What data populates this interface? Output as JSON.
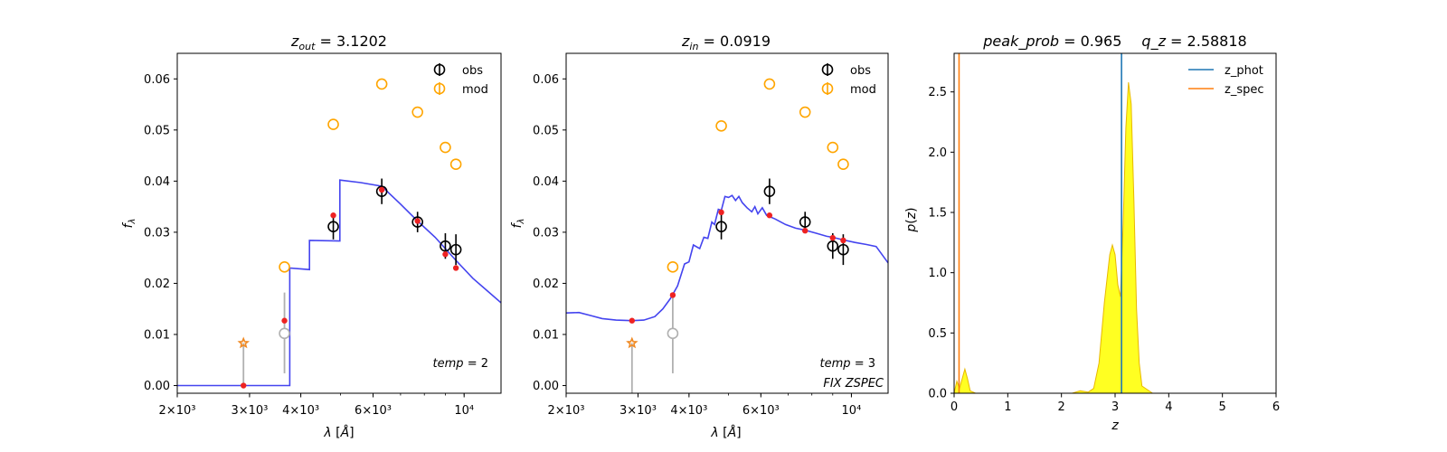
{
  "figure": {
    "panels": [
      {
        "title_text": "z_out = 3.1202",
        "title_parts": {
          "var": "z",
          "sub": "out",
          "eq": " = 3.1202"
        }
      },
      {
        "title_text": "z_in = 0.0919",
        "title_parts": {
          "var": "z",
          "sub": "in",
          "eq": " = 0.0919"
        }
      },
      {
        "title_text": "peak_prob = 0.965      q_z = 2.58818",
        "title_parts": {
          "left": "peak_prob",
          "left_eq": " = 0.965",
          "right": "q_z",
          "right_eq": " = 2.58818"
        }
      }
    ]
  },
  "chart_data": [
    {
      "type": "scatter",
      "title": "z_out = 3.1202",
      "xlabel": "λ [Å]",
      "ylabel": "f_λ",
      "xscale": "log",
      "xlim": [
        2000,
        12300
      ],
      "ylim": [
        -0.0015,
        0.065
      ],
      "xtick_labels": [
        "2×10³",
        "3×10³",
        "4×10³",
        "6×10³",
        "10⁴"
      ],
      "xtick_values": [
        2000,
        3000,
        4000,
        6000,
        10000
      ],
      "ytick_values": [
        0.0,
        0.01,
        0.02,
        0.03,
        0.04,
        0.05,
        0.06
      ],
      "ytick_labels": [
        "0.00",
        "0.01",
        "0.02",
        "0.03",
        "0.04",
        "0.05",
        "0.06"
      ],
      "legend": {
        "placement": "top-right",
        "entries": [
          "obs",
          "mod"
        ]
      },
      "annotation": "temp = 2",
      "colors": {
        "obs": "#000000",
        "mod": "#ffa500",
        "model_curve": "#3a3aee",
        "model_points": "#ee2222",
        "upper_limit": "#f08a24",
        "faint": "#b0b0b0"
      },
      "obs": [
        {
          "x": 4800,
          "y": 0.0311,
          "err": 0.0025
        },
        {
          "x": 6300,
          "y": 0.038,
          "err": 0.0025
        },
        {
          "x": 7700,
          "y": 0.032,
          "err": 0.002
        },
        {
          "x": 9000,
          "y": 0.0273,
          "err": 0.0025
        },
        {
          "x": 9550,
          "y": 0.0266,
          "err": 0.003
        }
      ],
      "obs_faint": [
        {
          "x": 3650,
          "y": 0.0102,
          "err_low": 0.0078,
          "err_high": 0.008
        }
      ],
      "upper_limits": [
        {
          "x": 2900,
          "y": 0.0083,
          "err_low": 0.0085,
          "err_high": 0.0
        }
      ],
      "mod": [
        {
          "x": 3650,
          "y": 0.0232
        },
        {
          "x": 4800,
          "y": 0.0511
        },
        {
          "x": 6300,
          "y": 0.059
        },
        {
          "x": 7700,
          "y": 0.0535
        },
        {
          "x": 9000,
          "y": 0.0466
        },
        {
          "x": 9550,
          "y": 0.0433
        }
      ],
      "model_points": [
        {
          "x": 2900,
          "y": 0.0
        },
        {
          "x": 3650,
          "y": 0.0127
        },
        {
          "x": 4800,
          "y": 0.0333
        },
        {
          "x": 6300,
          "y": 0.0383
        },
        {
          "x": 7700,
          "y": 0.0322
        },
        {
          "x": 9000,
          "y": 0.0257
        },
        {
          "x": 9550,
          "y": 0.023
        }
      ],
      "model_curve": [
        [
          2000,
          0.0
        ],
        [
          3760,
          0.0
        ],
        [
          3760,
          0.023
        ],
        [
          4200,
          0.0227
        ],
        [
          4200,
          0.0284
        ],
        [
          4980,
          0.0283
        ],
        [
          4980,
          0.0402
        ],
        [
          5600,
          0.0397
        ],
        [
          6300,
          0.039
        ],
        [
          7000,
          0.0355
        ],
        [
          7700,
          0.0322
        ],
        [
          8500,
          0.029
        ],
        [
          9000,
          0.0268
        ],
        [
          9550,
          0.0245
        ],
        [
          10500,
          0.021
        ],
        [
          11400,
          0.0185
        ],
        [
          12300,
          0.0162
        ]
      ]
    },
    {
      "type": "scatter",
      "title": "z_in = 0.0919",
      "xlabel": "λ [Å]",
      "ylabel": "f_λ",
      "xscale": "log",
      "xlim": [
        2000,
        12300
      ],
      "ylim": [
        -0.0015,
        0.065
      ],
      "xtick_labels": [
        "2×10³",
        "3×10³",
        "4×10³",
        "6×10³",
        "10⁴"
      ],
      "xtick_values": [
        2000,
        3000,
        4000,
        6000,
        10000
      ],
      "ytick_values": [
        0.0,
        0.01,
        0.02,
        0.03,
        0.04,
        0.05,
        0.06
      ],
      "ytick_labels": [
        "0.00",
        "0.01",
        "0.02",
        "0.03",
        "0.04",
        "0.05",
        "0.06"
      ],
      "legend": {
        "placement": "top-right",
        "entries": [
          "obs",
          "mod"
        ]
      },
      "annotation": "temp = 3",
      "annotation2": "FIX ZSPEC",
      "colors": {
        "obs": "#000000",
        "mod": "#ffa500",
        "model_curve": "#3a3aee",
        "model_points": "#ee2222",
        "upper_limit": "#f08a24",
        "faint": "#b0b0b0"
      },
      "obs": [
        {
          "x": 4800,
          "y": 0.0311,
          "err": 0.0025
        },
        {
          "x": 6300,
          "y": 0.038,
          "err": 0.0025
        },
        {
          "x": 7700,
          "y": 0.032,
          "err": 0.002
        },
        {
          "x": 9000,
          "y": 0.0273,
          "err": 0.0025
        },
        {
          "x": 9550,
          "y": 0.0266,
          "err": 0.003
        }
      ],
      "obs_faint": [
        {
          "x": 3650,
          "y": 0.0102,
          "err_low": 0.0078,
          "err_high": 0.008
        }
      ],
      "upper_limits": [
        {
          "x": 2900,
          "y": 0.0083,
          "err_low": 0.01,
          "err_high": 0.0
        }
      ],
      "mod": [
        {
          "x": 3650,
          "y": 0.0232
        },
        {
          "x": 4800,
          "y": 0.0508
        },
        {
          "x": 6300,
          "y": 0.059
        },
        {
          "x": 7700,
          "y": 0.0535
        },
        {
          "x": 9000,
          "y": 0.0466
        },
        {
          "x": 9550,
          "y": 0.0433
        }
      ],
      "model_points": [
        {
          "x": 2900,
          "y": 0.0127
        },
        {
          "x": 3650,
          "y": 0.0177
        },
        {
          "x": 4800,
          "y": 0.0339
        },
        {
          "x": 6300,
          "y": 0.0333
        },
        {
          "x": 7700,
          "y": 0.0303
        },
        {
          "x": 9000,
          "y": 0.0289
        },
        {
          "x": 9550,
          "y": 0.0284
        }
      ],
      "model_curve": [
        [
          2000,
          0.0142
        ],
        [
          2150,
          0.0143
        ],
        [
          2300,
          0.0137
        ],
        [
          2450,
          0.0131
        ],
        [
          2650,
          0.0128
        ],
        [
          2900,
          0.0127
        ],
        [
          3100,
          0.0128
        ],
        [
          3300,
          0.0135
        ],
        [
          3450,
          0.015
        ],
        [
          3600,
          0.017
        ],
        [
          3750,
          0.0195
        ],
        [
          3900,
          0.0238
        ],
        [
          4000,
          0.0242
        ],
        [
          4100,
          0.0275
        ],
        [
          4250,
          0.0268
        ],
        [
          4350,
          0.029
        ],
        [
          4450,
          0.0288
        ],
        [
          4550,
          0.032
        ],
        [
          4620,
          0.0315
        ],
        [
          4720,
          0.0345
        ],
        [
          4800,
          0.0343
        ],
        [
          4900,
          0.037
        ],
        [
          5000,
          0.0368
        ],
        [
          5100,
          0.0372
        ],
        [
          5200,
          0.0362
        ],
        [
          5300,
          0.037
        ],
        [
          5400,
          0.0358
        ],
        [
          5550,
          0.0348
        ],
        [
          5700,
          0.034
        ],
        [
          5800,
          0.035
        ],
        [
          5900,
          0.0336
        ],
        [
          6050,
          0.0348
        ],
        [
          6200,
          0.0333
        ],
        [
          6500,
          0.0326
        ],
        [
          6900,
          0.0315
        ],
        [
          7300,
          0.0308
        ],
        [
          7700,
          0.0304
        ],
        [
          8200,
          0.0298
        ],
        [
          8700,
          0.0292
        ],
        [
          9000,
          0.029
        ],
        [
          9550,
          0.0285
        ],
        [
          10200,
          0.028
        ],
        [
          10900,
          0.0276
        ],
        [
          11500,
          0.0272
        ],
        [
          12300,
          0.024
        ]
      ]
    },
    {
      "type": "area",
      "title": "peak_prob = 0.965      q_z = 2.58818",
      "xlabel": "z",
      "ylabel": "p(z)",
      "xlim": [
        0,
        6
      ],
      "ylim": [
        0,
        2.82
      ],
      "xtick_values": [
        0,
        1,
        2,
        3,
        4,
        5,
        6
      ],
      "xtick_labels": [
        "0",
        "1",
        "2",
        "3",
        "4",
        "5",
        "6"
      ],
      "ytick_values": [
        0.0,
        0.5,
        1.0,
        1.5,
        2.0,
        2.5
      ],
      "ytick_labels": [
        "0.0",
        "0.5",
        "1.0",
        "1.5",
        "2.0",
        "2.5"
      ],
      "legend": {
        "placement": "top-right",
        "entries": [
          "z_phot",
          "z_spec"
        ]
      },
      "z_phot": 3.12,
      "z_spec": 0.0919,
      "colors": {
        "z_phot": "#1f77b4",
        "z_spec": "#ff7f0e",
        "fill": "#ffff22",
        "fill_edge": "#e8b800"
      },
      "pz": [
        [
          0.0,
          0.0
        ],
        [
          0.05,
          0.1
        ],
        [
          0.1,
          0.04
        ],
        [
          0.15,
          0.12
        ],
        [
          0.2,
          0.2
        ],
        [
          0.25,
          0.12
        ],
        [
          0.3,
          0.02
        ],
        [
          0.4,
          0.0
        ],
        [
          2.2,
          0.0
        ],
        [
          2.35,
          0.02
        ],
        [
          2.5,
          0.01
        ],
        [
          2.6,
          0.04
        ],
        [
          2.7,
          0.25
        ],
        [
          2.8,
          0.75
        ],
        [
          2.9,
          1.15
        ],
        [
          2.95,
          1.23
        ],
        [
          3.0,
          1.15
        ],
        [
          3.05,
          0.9
        ],
        [
          3.1,
          0.8
        ],
        [
          3.15,
          1.4
        ],
        [
          3.2,
          2.2
        ],
        [
          3.25,
          2.58
        ],
        [
          3.3,
          2.4
        ],
        [
          3.35,
          1.6
        ],
        [
          3.4,
          0.7
        ],
        [
          3.45,
          0.25
        ],
        [
          3.5,
          0.06
        ],
        [
          3.6,
          0.03
        ],
        [
          3.7,
          0.0
        ],
        [
          5.0,
          0.0
        ]
      ]
    }
  ]
}
